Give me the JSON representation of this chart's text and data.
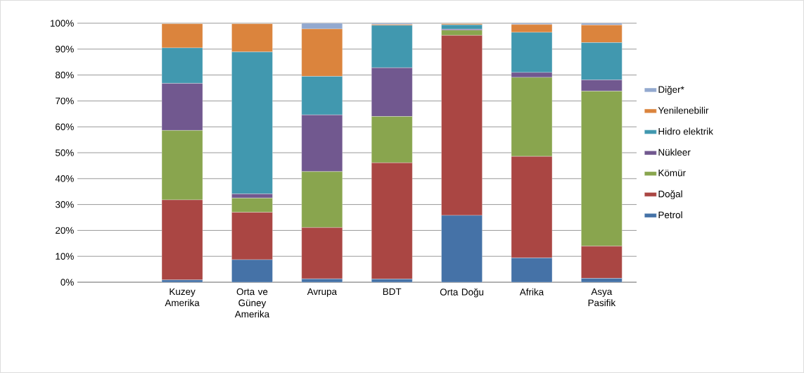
{
  "chart_data": {
    "type": "bar",
    "stacked": true,
    "categories": [
      null,
      "Kuzey Amerika",
      "Orta ve Güney Amerika",
      "Avrupa",
      "BDT",
      "Orta Doğu",
      "Afrika",
      "Asya Pasifik"
    ],
    "series": [
      {
        "name": "Petrol",
        "color": "#4572a7",
        "values": [
          null,
          0.9,
          8.7,
          1.3,
          1.2,
          25.8,
          9.4,
          1.5
        ]
      },
      {
        "name": "Doğal",
        "color": "#aa4643",
        "values": [
          null,
          30.9,
          18.3,
          19.8,
          44.9,
          69.5,
          39.2,
          12.4
        ]
      },
      {
        "name": "Kömür",
        "color": "#89a54e",
        "values": [
          null,
          26.8,
          5.5,
          21.6,
          17.9,
          2.0,
          30.5,
          59.9
        ]
      },
      {
        "name": "Nükleer",
        "color": "#71588f",
        "values": [
          null,
          18.2,
          1.6,
          21.9,
          18.8,
          0.4,
          1.9,
          4.3
        ]
      },
      {
        "name": "Hidro elektrik",
        "color": "#4198af",
        "values": [
          null,
          13.7,
          54.8,
          14.9,
          16.4,
          1.7,
          15.5,
          14.4
        ]
      },
      {
        "name": "Yenilenebilir",
        "color": "#db843d",
        "values": [
          null,
          9.3,
          10.9,
          18.3,
          0.3,
          0.4,
          3.0,
          6.8
        ]
      },
      {
        "name": "Diğer*",
        "color": "#93a9cf",
        "values": [
          null,
          null,
          null,
          2.2,
          0.5,
          null,
          0.5,
          0.7
        ]
      }
    ],
    "ylim": [
      0,
      100
    ],
    "yticks": [
      {
        "value": 0,
        "label": "0%"
      },
      {
        "value": 10,
        "label": "10%"
      },
      {
        "value": 20,
        "label": "20%"
      },
      {
        "value": 30,
        "label": "30%"
      },
      {
        "value": 40,
        "label": "40%"
      },
      {
        "value": 50,
        "label": "50%"
      },
      {
        "value": 60,
        "label": "60%"
      },
      {
        "value": 70,
        "label": "70%"
      },
      {
        "value": 80,
        "label": "80%"
      },
      {
        "value": 90,
        "label": "90%"
      },
      {
        "value": 100,
        "label": "100%"
      }
    ],
    "grid": "y",
    "legend": "right"
  }
}
